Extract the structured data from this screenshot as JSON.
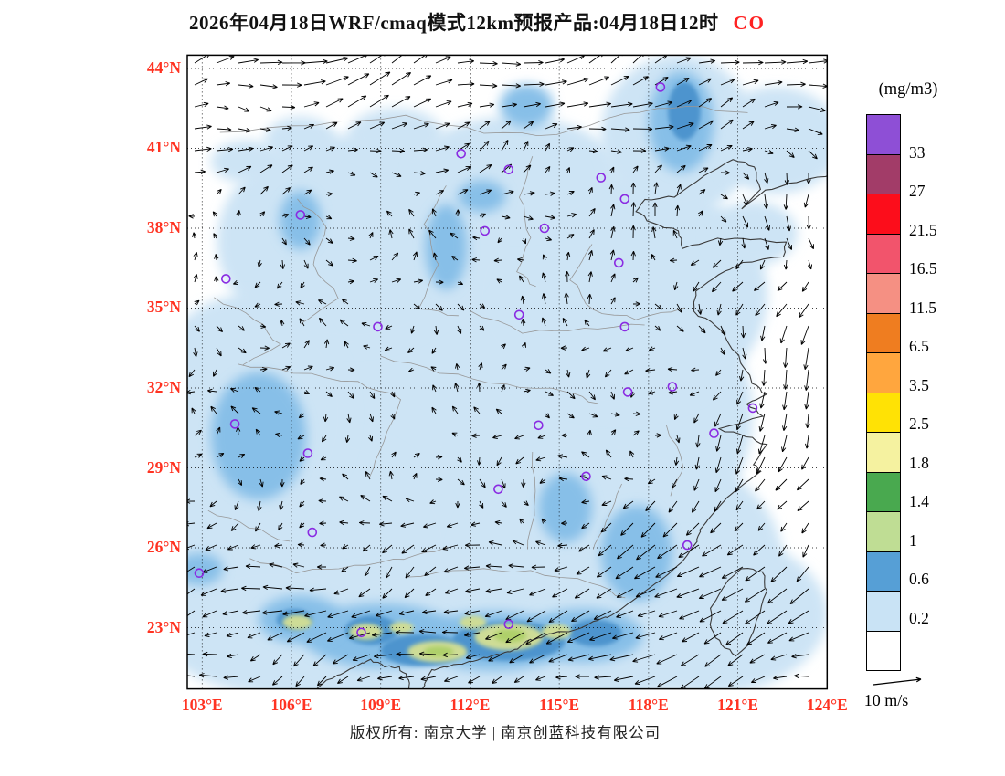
{
  "title": {
    "main": "2026年04月18日WRF/cmaq模式12km预报产品:04月18日12时",
    "species": "CO"
  },
  "axes": {
    "lat_labels": [
      "44°N",
      "41°N",
      "38°N",
      "35°N",
      "32°N",
      "29°N",
      "26°N",
      "23°N"
    ],
    "lon_labels": [
      "103°E",
      "106°E",
      "109°E",
      "112°E",
      "115°E",
      "118°E",
      "121°E",
      "124°E"
    ]
  },
  "colorbar": {
    "units": "(mg/m3)",
    "blocks": [
      {
        "color": "#8E4FD6",
        "label": "33"
      },
      {
        "color": "#A23C68",
        "label": "27"
      },
      {
        "color": "#FC0D1B",
        "label": "21.5"
      },
      {
        "color": "#F2546C",
        "label": "16.5"
      },
      {
        "color": "#F59083",
        "label": "11.5"
      },
      {
        "color": "#EF7D20",
        "label": "6.5"
      },
      {
        "color": "#FFA63E",
        "label": "3.5"
      },
      {
        "color": "#FFE205",
        "label": "2.5"
      },
      {
        "color": "#F5F2A0",
        "label": "1.8"
      },
      {
        "color": "#49A94F",
        "label": "1.4"
      },
      {
        "color": "#BFDD94",
        "label": "1"
      },
      {
        "color": "#569FD6",
        "label": "0.6"
      },
      {
        "color": "#C9E3F5",
        "label": "0.2"
      },
      {
        "color": "#FFFFFF",
        "label": ""
      }
    ]
  },
  "wind_legend": {
    "label": "10 m/s"
  },
  "footer": {
    "copyright": "版权所有: 南京大学 | 南京创蓝科技有限公司"
  },
  "colors": {
    "axis_label": "#FF3322",
    "species": "#FF2222",
    "title": "#111111",
    "coastline": "#3a3a3a",
    "province_border": "#979797",
    "city_marker": "#8A2BE2"
  },
  "chart_data": {
    "type": "heatmap",
    "title": "2026年04月18日WRF/cmaq模式12km预报产品:04月18日12时 CO",
    "species": "CO",
    "units": "mg/m3",
    "wind_reference": "10 m/s",
    "grid": "dotted",
    "lon_range": [
      102.5,
      124.0
    ],
    "lat_range": [
      20.7,
      44.5
    ],
    "lon_ticks": [
      103,
      106,
      109,
      112,
      115,
      118,
      121,
      124
    ],
    "lat_ticks": [
      44,
      41,
      38,
      35,
      32,
      29,
      26,
      23
    ],
    "levels": [
      0.2,
      0.6,
      1,
      1.4,
      1.8,
      2.5,
      3.5,
      6.5,
      11.5,
      16.5,
      21.5,
      27,
      33
    ],
    "level_colors": {
      "0.4": "#CDE4F5",
      "0.8": "#87BFE8",
      "1.2": "#4E94CE",
      "1.6": "#CEDC96",
      "2.2": "#AFD06A"
    },
    "city_markers": [
      [
        118.4,
        43.3
      ],
      [
        111.7,
        40.8
      ],
      [
        113.3,
        40.2
      ],
      [
        116.4,
        39.9
      ],
      [
        117.2,
        39.1
      ],
      [
        106.3,
        38.5
      ],
      [
        112.5,
        37.9
      ],
      [
        114.5,
        38.0
      ],
      [
        103.8,
        36.1
      ],
      [
        117.0,
        36.7
      ],
      [
        108.9,
        34.3
      ],
      [
        113.65,
        34.75
      ],
      [
        117.2,
        34.3
      ],
      [
        118.8,
        32.05
      ],
      [
        117.3,
        31.85
      ],
      [
        121.5,
        31.25
      ],
      [
        120.2,
        30.3
      ],
      [
        114.3,
        30.6
      ],
      [
        104.1,
        30.65
      ],
      [
        106.55,
        29.55
      ],
      [
        112.95,
        28.2
      ],
      [
        115.9,
        28.68
      ],
      [
        106.7,
        26.58
      ],
      [
        119.3,
        26.1
      ],
      [
        102.9,
        25.05
      ],
      [
        108.35,
        22.82
      ],
      [
        113.3,
        23.13
      ]
    ],
    "fill_regions": [
      {
        "lon": 112.0,
        "lat": 31.0,
        "rlon": 9.5,
        "rlat": 7.5,
        "level": 0.4
      },
      {
        "lon": 106.5,
        "lat": 26.0,
        "rlon": 5.0,
        "rlat": 4.5,
        "level": 0.4
      },
      {
        "lon": 117.0,
        "lat": 25.5,
        "rlon": 5.5,
        "rlat": 4.5,
        "level": 0.4
      },
      {
        "lon": 112.0,
        "lat": 22.5,
        "rlon": 8.0,
        "rlat": 3.0,
        "level": 0.4
      },
      {
        "lon": 117.0,
        "lat": 35.5,
        "rlon": 5.0,
        "rlat": 4.5,
        "level": 0.4
      },
      {
        "lon": 108.0,
        "lat": 37.5,
        "rlon": 4.5,
        "rlat": 4.0,
        "level": 0.4
      },
      {
        "lon": 113.5,
        "lat": 40.0,
        "rlon": 3.5,
        "rlat": 2.2,
        "level": 0.4
      },
      {
        "lon": 119.0,
        "lat": 41.5,
        "rlon": 2.6,
        "rlat": 3.0,
        "level": 0.4
      },
      {
        "lon": 122.3,
        "lat": 41.3,
        "rlon": 2.2,
        "rlat": 2.0,
        "level": 0.4
      },
      {
        "lon": 104.5,
        "lat": 31.0,
        "rlon": 3.5,
        "rlat": 4.5,
        "level": 0.4
      },
      {
        "lon": 105.5,
        "lat": 23.0,
        "rlon": 4.0,
        "rlat": 2.5,
        "level": 0.4
      },
      {
        "lon": 120.0,
        "lat": 23.5,
        "rlon": 4.0,
        "rlat": 3.0,
        "level": 0.4
      },
      {
        "lon": 109.5,
        "lat": 41.5,
        "rlon": 1.6,
        "rlat": 1.0,
        "level": 0.4
      },
      {
        "lon": 106.3,
        "lat": 41.3,
        "rlon": 1.2,
        "rlat": 0.9,
        "level": 0.4
      },
      {
        "lon": 104.5,
        "lat": 40.5,
        "rlon": 1.2,
        "rlat": 0.8,
        "level": 0.4
      },
      {
        "lon": 121.5,
        "lat": 37.8,
        "rlon": 1.5,
        "rlat": 1.2,
        "level": 0.4
      },
      {
        "lon": 109.0,
        "lat": 22.7,
        "rlon": 2.6,
        "rlat": 1.2,
        "level": 0.8
      },
      {
        "lon": 112.8,
        "lat": 22.5,
        "rlon": 2.6,
        "rlat": 1.1,
        "level": 0.8
      },
      {
        "lon": 115.8,
        "lat": 22.7,
        "rlon": 2.0,
        "rlat": 1.0,
        "level": 0.8
      },
      {
        "lon": 106.3,
        "lat": 23.3,
        "rlon": 1.4,
        "rlat": 0.9,
        "level": 0.8
      },
      {
        "lon": 104.9,
        "lat": 30.2,
        "rlon": 1.6,
        "rlat": 2.4,
        "level": 0.8
      },
      {
        "lon": 119.1,
        "lat": 42.0,
        "rlon": 1.1,
        "rlat": 1.9,
        "level": 0.8
      },
      {
        "lon": 113.9,
        "lat": 42.6,
        "rlon": 0.9,
        "rlat": 0.8,
        "level": 0.8
      },
      {
        "lon": 106.3,
        "lat": 38.3,
        "rlon": 0.7,
        "rlat": 1.1,
        "level": 0.8
      },
      {
        "lon": 111.2,
        "lat": 37.3,
        "rlon": 0.7,
        "rlat": 1.6,
        "level": 0.8
      },
      {
        "lon": 117.6,
        "lat": 25.8,
        "rlon": 1.2,
        "rlat": 1.8,
        "level": 0.8
      },
      {
        "lon": 112.4,
        "lat": 39.2,
        "rlon": 0.8,
        "rlat": 0.6,
        "level": 0.8
      },
      {
        "lon": 115.2,
        "lat": 27.5,
        "rlon": 0.9,
        "rlat": 1.3,
        "level": 0.8
      },
      {
        "lon": 102.9,
        "lat": 25.2,
        "rlon": 0.8,
        "rlat": 0.6,
        "level": 0.8
      },
      {
        "lon": 113.3,
        "lat": 22.5,
        "rlon": 1.9,
        "rlat": 0.75,
        "level": 1.2
      },
      {
        "lon": 110.4,
        "lat": 22.15,
        "rlon": 1.4,
        "rlat": 0.6,
        "level": 1.2
      },
      {
        "lon": 108.7,
        "lat": 22.9,
        "rlon": 0.9,
        "rlat": 0.55,
        "level": 1.2
      },
      {
        "lon": 119.2,
        "lat": 42.4,
        "rlon": 0.55,
        "rlat": 1.1,
        "level": 1.2
      },
      {
        "lon": 116.2,
        "lat": 22.8,
        "rlon": 0.9,
        "rlat": 0.5,
        "level": 1.2
      },
      {
        "lon": 106.1,
        "lat": 23.3,
        "rlon": 0.6,
        "rlat": 0.4,
        "level": 1.2
      },
      {
        "lon": 113.3,
        "lat": 22.65,
        "rlon": 1.15,
        "rlat": 0.5,
        "level": 1.6
      },
      {
        "lon": 110.9,
        "lat": 22.1,
        "rlon": 1.0,
        "rlat": 0.4,
        "level": 1.6
      },
      {
        "lon": 108.5,
        "lat": 22.85,
        "rlon": 0.55,
        "rlat": 0.3,
        "level": 1.6
      },
      {
        "lon": 106.2,
        "lat": 23.2,
        "rlon": 0.5,
        "rlat": 0.28,
        "level": 1.6
      },
      {
        "lon": 112.1,
        "lat": 23.2,
        "rlon": 0.45,
        "rlat": 0.25,
        "level": 1.6
      },
      {
        "lon": 114.9,
        "lat": 22.85,
        "rlon": 0.5,
        "rlat": 0.28,
        "level": 1.6
      },
      {
        "lon": 109.7,
        "lat": 23.0,
        "rlon": 0.4,
        "rlat": 0.22,
        "level": 1.6
      },
      {
        "lon": 113.35,
        "lat": 22.7,
        "rlon": 0.55,
        "rlat": 0.25,
        "level": 2.2
      },
      {
        "lon": 110.95,
        "lat": 22.1,
        "rlon": 0.5,
        "rlat": 0.2,
        "level": 2.2
      }
    ]
  }
}
